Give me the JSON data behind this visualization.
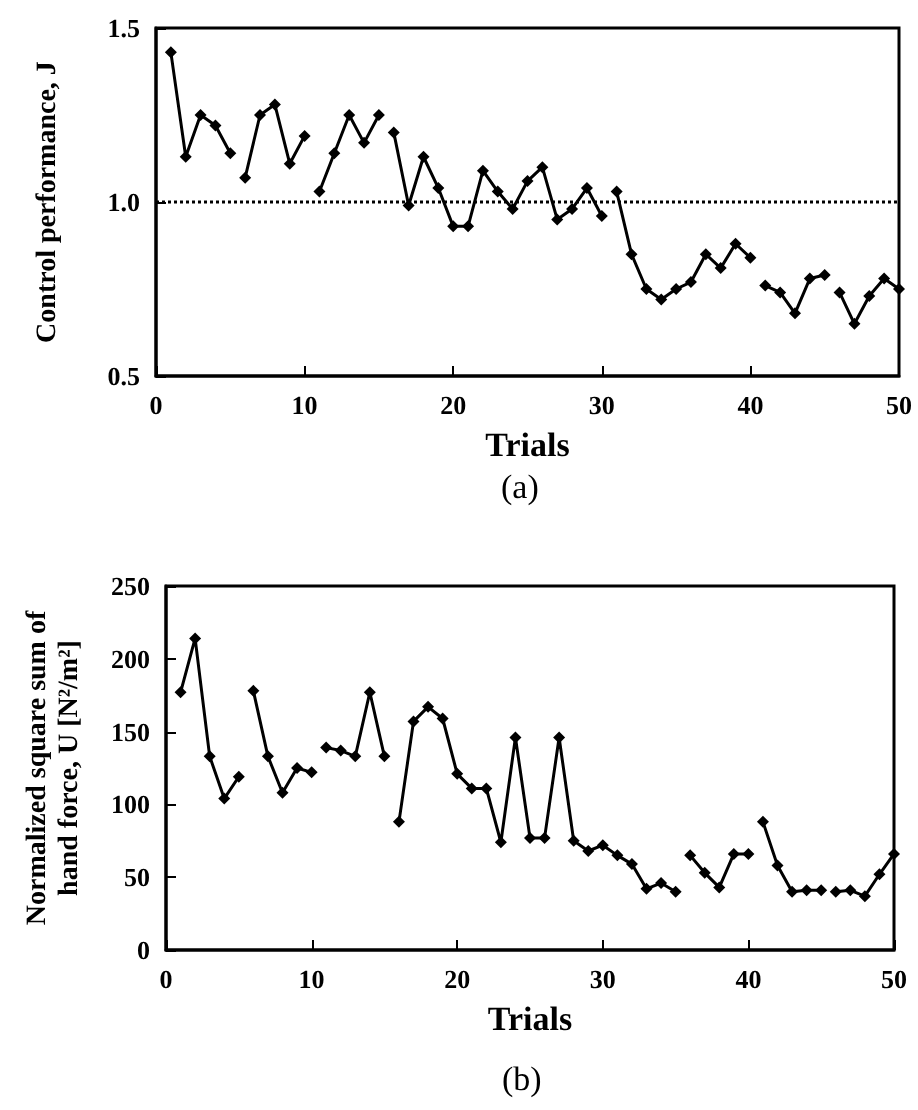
{
  "chart_data": [
    {
      "type": "line",
      "xlabel": "Trials",
      "ylabel": "Control performance, J",
      "annotations": [
        "(a)"
      ],
      "xlim": [
        0,
        50
      ],
      "xticks": [
        0,
        10,
        20,
        30,
        40,
        50
      ],
      "ylim": [
        0.5,
        1.5
      ],
      "yticks": [
        0.5,
        {
          "value": 1,
          "label": "1.0"
        },
        1.5
      ],
      "marker": "diamond",
      "line_style": "solid",
      "ref_lines": [
        {
          "axis": "y",
          "value": 1,
          "line_style": "dotted",
          "color": "#000000"
        }
      ],
      "series": [
        {
          "color": "#000000",
          "x": [
            1,
            2,
            3,
            4,
            5
          ],
          "values": [
            1.43,
            1.13,
            1.25,
            1.22,
            1.14
          ]
        },
        {
          "color": "#000000",
          "x": [
            6,
            7,
            8,
            9,
            10
          ],
          "values": [
            1.07,
            1.25,
            1.28,
            1.11,
            1.19
          ]
        },
        {
          "color": "#000000",
          "x": [
            11,
            12,
            13,
            14,
            15
          ],
          "values": [
            1.03,
            1.14,
            1.25,
            1.17,
            1.25
          ]
        },
        {
          "color": "#000000",
          "x": [
            16,
            17,
            18,
            19,
            20,
            21,
            22,
            23,
            24,
            25,
            26,
            27,
            28,
            29,
            30
          ],
          "values": [
            1.2,
            0.99,
            1.13,
            1.04,
            0.93,
            0.93,
            1.09,
            1.03,
            0.98,
            1.06,
            1.1,
            0.95,
            0.98,
            1.04,
            0.96
          ]
        },
        {
          "color": "#000000",
          "x": [
            31,
            32,
            33,
            34,
            35,
            36,
            37,
            38,
            39,
            40
          ],
          "values": [
            1.03,
            0.85,
            0.75,
            0.72,
            0.75,
            0.77,
            0.85,
            0.81,
            0.88,
            0.84
          ]
        },
        {
          "color": "#000000",
          "x": [
            41,
            42,
            43,
            44,
            45
          ],
          "values": [
            0.76,
            0.74,
            0.68,
            0.78,
            0.79
          ]
        },
        {
          "color": "#000000",
          "x": [
            46,
            47,
            48,
            49,
            50
          ],
          "values": [
            0.74,
            0.65,
            0.73,
            0.78,
            0.75
          ]
        }
      ]
    },
    {
      "type": "line",
      "xlabel": "Trials",
      "ylabel": "Normalized square sum of\nhand force, U [N²/m²]",
      "annotations": [
        "(b)"
      ],
      "xlim": [
        0,
        50
      ],
      "xticks": [
        0,
        10,
        20,
        30,
        40,
        50
      ],
      "ylim": [
        0,
        250
      ],
      "yticks": [
        0,
        50,
        100,
        150,
        200,
        250
      ],
      "marker": "diamond",
      "line_style": "solid",
      "series": [
        {
          "color": "#000000",
          "x": [
            1,
            2,
            3,
            4,
            5
          ],
          "values": [
            177,
            214,
            133,
            104,
            119
          ]
        },
        {
          "color": "#000000",
          "x": [
            6,
            7,
            8,
            9,
            10
          ],
          "values": [
            178,
            133,
            108,
            125,
            122
          ]
        },
        {
          "color": "#000000",
          "x": [
            11,
            12,
            13,
            14,
            15
          ],
          "values": [
            139,
            137,
            133,
            177,
            133
          ]
        },
        {
          "color": "#000000",
          "x": [
            16,
            17,
            18,
            19,
            20,
            21,
            22,
            23,
            24,
            25,
            26,
            27,
            28,
            29,
            30,
            31,
            32,
            33,
            34,
            35
          ],
          "values": [
            88,
            157,
            167,
            159,
            121,
            111,
            111,
            74,
            146,
            77,
            77,
            146,
            75,
            68,
            72,
            65,
            59,
            42,
            46,
            40
          ]
        },
        {
          "color": "#000000",
          "x": [
            36,
            37,
            38,
            39,
            40
          ],
          "values": [
            65,
            53,
            43,
            66,
            66
          ]
        },
        {
          "color": "#000000",
          "x": [
            41,
            42,
            43,
            44,
            45
          ],
          "values": [
            88,
            58,
            40,
            41,
            41
          ]
        },
        {
          "color": "#000000",
          "x": [
            46,
            47,
            48,
            49,
            50
          ],
          "values": [
            40,
            41,
            37,
            52,
            66
          ]
        }
      ]
    }
  ]
}
